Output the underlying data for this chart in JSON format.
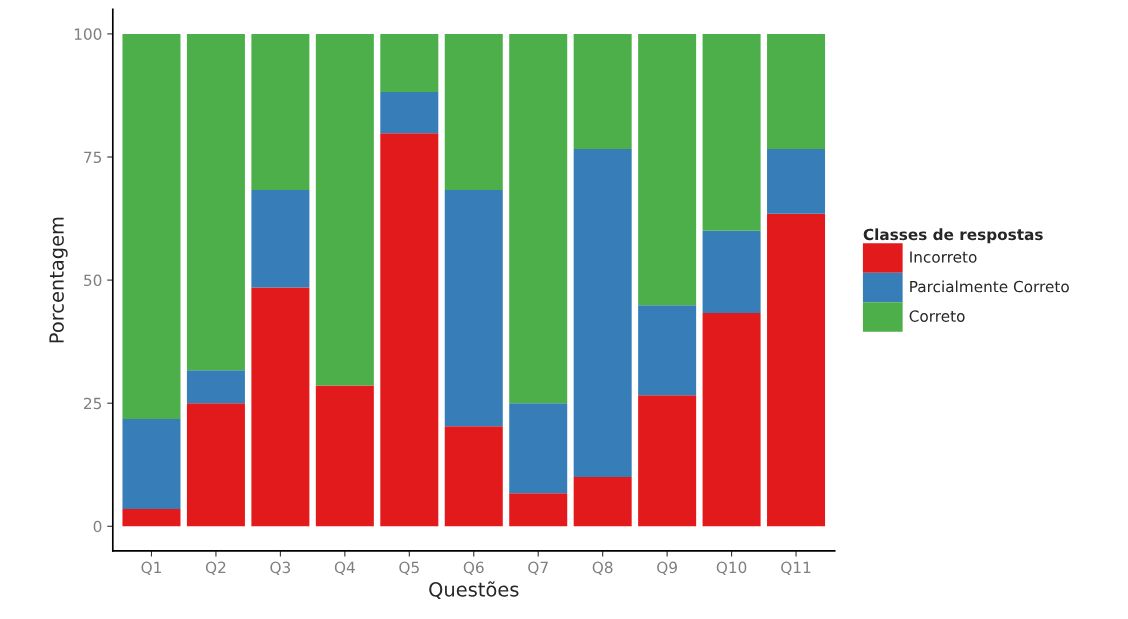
{
  "chart_data": {
    "type": "bar",
    "stacked": true,
    "xlabel": "Questões",
    "ylabel": "Porcentagem",
    "legend_title": "Classes de respostas",
    "legend": "right",
    "grid": false,
    "categories": [
      "Q1",
      "Q2",
      "Q3",
      "Q4",
      "Q5",
      "Q6",
      "Q7",
      "Q8",
      "Q9",
      "Q10",
      "Q11"
    ],
    "series": [
      {
        "name": "Incorreto",
        "color": "#e31a1c",
        "values": [
          3.5,
          25,
          48.5,
          28.6,
          79.8,
          20.3,
          6.7,
          10,
          26.6,
          43.3,
          63.5
        ]
      },
      {
        "name": "Parcialmente Correto",
        "color": "#377eb8",
        "values": [
          18.3,
          6.7,
          19.8,
          0,
          8.4,
          48,
          18.3,
          66.6,
          18.3,
          16.7,
          13.1
        ]
      },
      {
        "name": "Correto",
        "color": "#4daf4a",
        "values": [
          78.2,
          68.3,
          31.7,
          71.4,
          11.8,
          31.7,
          75,
          23.4,
          55.1,
          40,
          23.4
        ]
      }
    ],
    "ylim": [
      -5,
      105
    ],
    "yticks": [
      0,
      25,
      50,
      75,
      100
    ]
  }
}
